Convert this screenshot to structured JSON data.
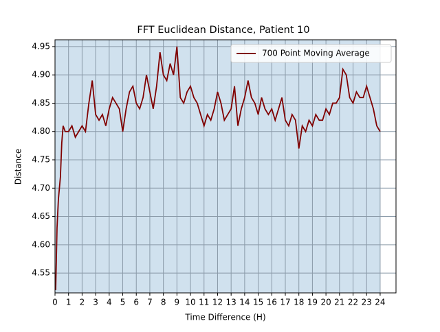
{
  "chart_data": {
    "type": "line",
    "title": "FFT Euclidean Distance, Patient 10",
    "x_label": "Time Difference (H)",
    "y_label": "Distance",
    "x": [
      0.05,
      0.15,
      0.25,
      0.4,
      0.5,
      0.6,
      0.75,
      1.0,
      1.25,
      1.5,
      1.75,
      2.0,
      2.25,
      2.5,
      2.75,
      3.0,
      3.25,
      3.5,
      3.75,
      4.0,
      4.25,
      4.5,
      4.75,
      5.0,
      5.25,
      5.5,
      5.75,
      6.0,
      6.25,
      6.5,
      6.75,
      7.0,
      7.25,
      7.5,
      7.75,
      8.0,
      8.25,
      8.5,
      8.75,
      9.0,
      9.25,
      9.5,
      9.75,
      10.0,
      10.25,
      10.5,
      10.75,
      11.0,
      11.25,
      11.5,
      11.75,
      12.0,
      12.25,
      12.5,
      12.75,
      13.0,
      13.25,
      13.5,
      13.75,
      14.0,
      14.25,
      14.5,
      14.75,
      15.0,
      15.25,
      15.5,
      15.75,
      16.0,
      16.25,
      16.5,
      16.75,
      17.0,
      17.25,
      17.5,
      17.75,
      18.0,
      18.25,
      18.5,
      18.75,
      19.0,
      19.25,
      19.5,
      19.75,
      20.0,
      20.25,
      20.5,
      20.75,
      21.0,
      21.25,
      21.5,
      21.75,
      22.0,
      22.25,
      22.5,
      22.75,
      23.0,
      23.25,
      23.5,
      23.75,
      24.0
    ],
    "series": [
      {
        "name": "700 Point Moving Average",
        "color": "#800000",
        "values": [
          4.52,
          4.63,
          4.68,
          4.72,
          4.78,
          4.81,
          4.8,
          4.8,
          4.81,
          4.79,
          4.8,
          4.81,
          4.8,
          4.85,
          4.89,
          4.83,
          4.82,
          4.83,
          4.81,
          4.84,
          4.86,
          4.85,
          4.84,
          4.8,
          4.84,
          4.87,
          4.88,
          4.85,
          4.84,
          4.86,
          4.9,
          4.87,
          4.84,
          4.88,
          4.94,
          4.9,
          4.89,
          4.92,
          4.9,
          4.95,
          4.86,
          4.85,
          4.87,
          4.88,
          4.86,
          4.85,
          4.83,
          4.81,
          4.83,
          4.82,
          4.84,
          4.87,
          4.85,
          4.82,
          4.83,
          4.84,
          4.88,
          4.81,
          4.84,
          4.86,
          4.89,
          4.86,
          4.85,
          4.83,
          4.86,
          4.84,
          4.83,
          4.84,
          4.82,
          4.84,
          4.86,
          4.82,
          4.81,
          4.83,
          4.82,
          4.77,
          4.81,
          4.8,
          4.82,
          4.81,
          4.83,
          4.82,
          4.82,
          4.84,
          4.83,
          4.85,
          4.85,
          4.86,
          4.91,
          4.9,
          4.86,
          4.85,
          4.87,
          4.86,
          4.86,
          4.88,
          4.86,
          4.84,
          4.81,
          4.8
        ]
      }
    ],
    "span": [
      0,
      24
    ],
    "span_color": "#d0e1ee",
    "xlim": [
      0,
      25.17
    ],
    "ylim": [
      4.515,
      4.962
    ],
    "xticks": [
      0,
      1,
      2,
      3,
      4,
      5,
      6,
      7,
      8,
      9,
      10,
      11,
      12,
      13,
      14,
      15,
      16,
      17,
      18,
      19,
      20,
      21,
      22,
      23,
      24
    ],
    "yticks": [
      {
        "value": 4.55,
        "label": "4.55"
      },
      {
        "value": 4.6,
        "label": "4.60"
      },
      {
        "value": 4.65,
        "label": "4.65"
      },
      {
        "value": 4.7,
        "label": "4.70"
      },
      {
        "value": 4.75,
        "label": "4.75"
      },
      {
        "value": 4.8,
        "label": "4.80"
      },
      {
        "value": 4.85,
        "label": "4.85"
      },
      {
        "value": 4.9,
        "label": "4.90"
      },
      {
        "value": 4.95,
        "label": "4.95"
      }
    ],
    "grid": true,
    "legend": "upper right"
  }
}
